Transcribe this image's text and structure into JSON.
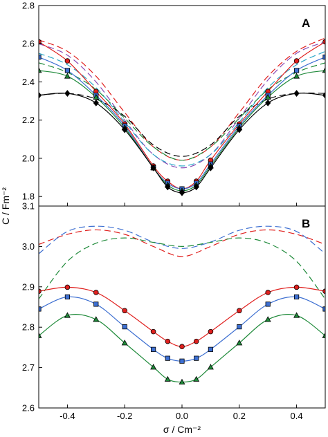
{
  "ylabel": "C / Fm⁻²",
  "xlabel": "σ / Cm⁻²",
  "colors": {
    "red": "#e0201e",
    "blue": "#3d6fd1",
    "green": "#1f8a3a",
    "black": "#000000",
    "purple": "#8a4bb5",
    "cyan": "#2aa7c9"
  },
  "chart_data": [
    {
      "type": "line",
      "panel_label": "A",
      "xlim": [
        -0.5,
        0.5
      ],
      "ylim": [
        1.75,
        2.8
      ],
      "xticks": [
        -0.4,
        -0.2,
        0.0,
        0.2,
        0.4
      ],
      "xtick_labels": [
        "-0.4",
        "-0.2",
        "0.0",
        "0.2",
        "0.4"
      ],
      "yticks": [
        1.8,
        2.0,
        2.2,
        2.4,
        2.6,
        2.8
      ],
      "ytick_labels": [
        "1.8",
        "2.0",
        "2.2",
        "2.4",
        "2.6",
        "2.8"
      ],
      "grid": false,
      "series": [
        {
          "style": "solid",
          "marker": "circle",
          "color": "#e0201e",
          "x": [
            -0.5,
            -0.4,
            -0.3,
            -0.2,
            -0.1,
            -0.05,
            0.0,
            0.05,
            0.1,
            0.2,
            0.3,
            0.4,
            0.5
          ],
          "y": [
            2.61,
            2.51,
            2.35,
            2.18,
            1.96,
            1.88,
            1.84,
            1.88,
            1.99,
            2.18,
            2.35,
            2.51,
            2.61
          ]
        },
        {
          "style": "solid",
          "marker": "square",
          "color": "#3d6fd1",
          "x": [
            -0.5,
            -0.4,
            -0.3,
            -0.2,
            -0.1,
            -0.05,
            0.0,
            0.05,
            0.1,
            0.2,
            0.3,
            0.4,
            0.5
          ],
          "y": [
            2.53,
            2.46,
            2.33,
            2.17,
            1.95,
            1.87,
            1.84,
            1.87,
            1.97,
            2.17,
            2.33,
            2.46,
            2.53
          ]
        },
        {
          "style": "solid",
          "marker": "triangle",
          "color": "#1f8a3a",
          "x": [
            -0.5,
            -0.4,
            -0.3,
            -0.2,
            -0.1,
            -0.05,
            0.0,
            0.05,
            0.1,
            0.2,
            0.3,
            0.4,
            0.5
          ],
          "y": [
            2.46,
            2.43,
            2.32,
            2.16,
            1.95,
            1.86,
            1.83,
            1.86,
            1.96,
            2.16,
            2.32,
            2.43,
            2.46
          ]
        },
        {
          "style": "solid",
          "marker": "diamond",
          "color": "#000000",
          "x": [
            -0.5,
            -0.4,
            -0.3,
            -0.2,
            -0.1,
            -0.05,
            0.0,
            0.05,
            0.1,
            0.2,
            0.3,
            0.4,
            0.5
          ],
          "y": [
            2.33,
            2.34,
            2.29,
            2.15,
            1.95,
            1.85,
            1.82,
            1.85,
            1.95,
            2.15,
            2.29,
            2.34,
            2.33
          ]
        },
        {
          "style": "dashed",
          "color": "#e0201e",
          "x": [
            -0.5,
            -0.4,
            -0.3,
            -0.2,
            -0.1,
            0.0,
            0.1,
            0.2,
            0.3,
            0.4,
            0.5
          ],
          "y": [
            2.62,
            2.56,
            2.43,
            2.24,
            2.06,
            1.99,
            2.06,
            2.24,
            2.43,
            2.56,
            2.63
          ]
        },
        {
          "style": "dashed",
          "color": "#8a4bb5",
          "x": [
            -0.5,
            -0.4,
            -0.3,
            -0.2,
            -0.1,
            0.0,
            0.1,
            0.2,
            0.3,
            0.4,
            0.5
          ],
          "y": [
            2.6,
            2.54,
            2.4,
            2.2,
            2.02,
            1.95,
            2.02,
            2.21,
            2.41,
            2.55,
            2.61
          ]
        },
        {
          "style": "dashed",
          "color": "#2aa7c9",
          "x": [
            -0.5,
            -0.4,
            -0.3,
            -0.2,
            -0.1,
            0.0,
            0.1,
            0.2,
            0.3,
            0.4,
            0.5
          ],
          "y": [
            2.55,
            2.49,
            2.37,
            2.19,
            2.02,
            1.96,
            2.02,
            2.19,
            2.37,
            2.49,
            2.56
          ]
        },
        {
          "style": "dashed",
          "color": "#1f8a3a",
          "x": [
            -0.5,
            -0.4,
            -0.3,
            -0.2,
            -0.1,
            0.0,
            0.1,
            0.2,
            0.3,
            0.4,
            0.5
          ],
          "y": [
            2.5,
            2.45,
            2.36,
            2.21,
            2.06,
            1.99,
            2.06,
            2.21,
            2.36,
            2.45,
            2.5
          ]
        },
        {
          "style": "dashed",
          "color": "#000000",
          "x": [
            -0.5,
            -0.4,
            -0.3,
            -0.2,
            -0.1,
            0.0,
            0.1,
            0.2,
            0.3,
            0.4,
            0.5
          ],
          "y": [
            2.33,
            2.34,
            2.31,
            2.22,
            2.07,
            2.01,
            2.07,
            2.22,
            2.31,
            2.34,
            2.34
          ]
        }
      ]
    },
    {
      "type": "line",
      "panel_label": "B",
      "xlim": [
        -0.5,
        0.5
      ],
      "ylim": [
        2.6,
        3.1
      ],
      "xticks": [
        -0.4,
        -0.2,
        0.0,
        0.2,
        0.4
      ],
      "xtick_labels": [
        "-0.4",
        "-0.2",
        "0.0",
        "0.2",
        "0.4"
      ],
      "yticks": [
        2.6,
        2.7,
        2.8,
        2.9,
        3.0,
        3.1
      ],
      "ytick_labels": [
        "2.6",
        "2.7",
        "2.8",
        "2.9",
        "3.0",
        "3.1"
      ],
      "grid": false,
      "series": [
        {
          "style": "solid",
          "marker": "circle",
          "color": "#e0201e",
          "x": [
            -0.5,
            -0.4,
            -0.3,
            -0.2,
            -0.1,
            -0.05,
            0.0,
            0.05,
            0.1,
            0.2,
            0.3,
            0.4,
            0.5
          ],
          "y": [
            2.889,
            2.899,
            2.886,
            2.841,
            2.789,
            2.765,
            2.752,
            2.765,
            2.789,
            2.841,
            2.886,
            2.899,
            2.889
          ]
        },
        {
          "style": "solid",
          "marker": "square",
          "color": "#3d6fd1",
          "x": [
            -0.5,
            -0.4,
            -0.3,
            -0.2,
            -0.1,
            -0.05,
            0.0,
            0.05,
            0.1,
            0.2,
            0.3,
            0.4,
            0.5
          ],
          "y": [
            2.845,
            2.875,
            2.857,
            2.801,
            2.745,
            2.723,
            2.716,
            2.723,
            2.745,
            2.801,
            2.857,
            2.875,
            2.845
          ]
        },
        {
          "style": "solid",
          "marker": "triangle",
          "color": "#1f8a3a",
          "x": [
            -0.5,
            -0.4,
            -0.3,
            -0.2,
            -0.1,
            -0.05,
            0.0,
            0.05,
            0.1,
            0.2,
            0.3,
            0.4,
            0.5
          ],
          "y": [
            2.779,
            2.829,
            2.819,
            2.761,
            2.701,
            2.671,
            2.664,
            2.671,
            2.701,
            2.761,
            2.819,
            2.829,
            2.779
          ]
        },
        {
          "style": "dashed",
          "color": "#e0201e",
          "x": [
            -0.5,
            -0.4,
            -0.3,
            -0.2,
            -0.1,
            0.0,
            0.1,
            0.2,
            0.3,
            0.4,
            0.5
          ],
          "y": [
            3.005,
            3.03,
            3.041,
            3.03,
            3.0,
            2.975,
            3.0,
            3.03,
            3.041,
            3.03,
            3.005
          ]
        },
        {
          "style": "dashed",
          "color": "#3d6fd1",
          "x": [
            -0.5,
            -0.4,
            -0.3,
            -0.2,
            -0.1,
            0.0,
            0.1,
            0.2,
            0.3,
            0.4,
            0.5
          ],
          "y": [
            2.982,
            3.037,
            3.05,
            3.04,
            3.011,
            2.995,
            3.011,
            3.04,
            3.05,
            3.037,
            2.982
          ]
        },
        {
          "style": "dashed",
          "color": "#1f8a3a",
          "x": [
            -0.5,
            -0.4,
            -0.3,
            -0.2,
            -0.1,
            0.0,
            0.1,
            0.2,
            0.3,
            0.4,
            0.5
          ],
          "y": [
            2.87,
            2.963,
            3.008,
            3.021,
            3.01,
            3.0,
            3.01,
            3.021,
            3.008,
            2.963,
            2.87
          ]
        }
      ]
    }
  ]
}
